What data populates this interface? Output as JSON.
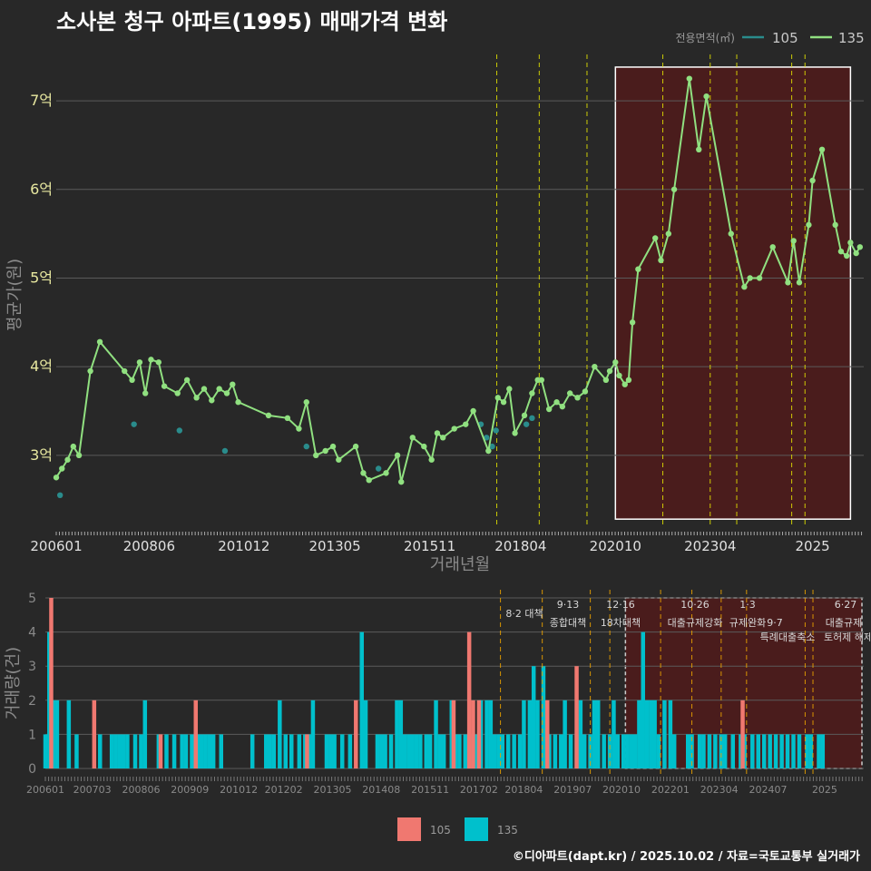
{
  "title": "소사본 청구 아파트(1995) 매매가격 변화",
  "footer": "©디아파트(dapt.kr) / 2025.10.02 / 자료=국토교통부 실거래가",
  "colors": {
    "bg": "#282828",
    "line135": "#90e080",
    "dot105": "#2a8c8c",
    "bar105": "#f07870",
    "bar135": "#00c0cc",
    "highlight": "#4a1c1c",
    "vline": "#e8e800"
  },
  "chart_data": {
    "price_chart": {
      "type": "line",
      "ylabel": "평균가(원)",
      "xlabel": "거래년월",
      "legend_title": "전용면적(㎡)",
      "legend": [
        "105",
        "135"
      ],
      "x_ticks": [
        "200601",
        "200806",
        "201012",
        "201305",
        "201511",
        "201804",
        "202010",
        "202304",
        "2025"
      ],
      "y_ticks": [
        "3억",
        "4억",
        "5억",
        "6억",
        "7억"
      ],
      "ylim": [
        2.2,
        7.4
      ],
      "highlight_range": [
        2020.75,
        2025.9
      ],
      "policy_lines": [
        2017.6,
        2018.7,
        2019.95,
        2021.9,
        2023.15,
        2023.8,
        2025.25,
        2025.45
      ],
      "series_135": [
        [
          2006.0,
          2.75
        ],
        [
          2006.15,
          2.85
        ],
        [
          2006.3,
          2.95
        ],
        [
          2006.45,
          3.1
        ],
        [
          2006.6,
          3.0
        ],
        [
          2006.9,
          3.95
        ],
        [
          2007.15,
          4.28
        ],
        [
          2007.8,
          3.95
        ],
        [
          2008.0,
          3.85
        ],
        [
          2008.2,
          4.05
        ],
        [
          2008.35,
          3.7
        ],
        [
          2008.5,
          4.08
        ],
        [
          2008.7,
          4.05
        ],
        [
          2008.85,
          3.78
        ],
        [
          2009.2,
          3.7
        ],
        [
          2009.45,
          3.85
        ],
        [
          2009.7,
          3.65
        ],
        [
          2009.9,
          3.75
        ],
        [
          2010.1,
          3.62
        ],
        [
          2010.3,
          3.75
        ],
        [
          2010.5,
          3.7
        ],
        [
          2010.65,
          3.8
        ],
        [
          2010.8,
          3.6
        ],
        [
          2011.6,
          3.45
        ],
        [
          2012.1,
          3.42
        ],
        [
          2012.4,
          3.3
        ],
        [
          2012.6,
          3.6
        ],
        [
          2012.85,
          3.0
        ],
        [
          2013.1,
          3.05
        ],
        [
          2013.3,
          3.1
        ],
        [
          2013.45,
          2.95
        ],
        [
          2013.9,
          3.1
        ],
        [
          2014.1,
          2.8
        ],
        [
          2014.25,
          2.72
        ],
        [
          2014.7,
          2.8
        ],
        [
          2015.0,
          3.0
        ],
        [
          2015.1,
          2.7
        ],
        [
          2015.4,
          3.2
        ],
        [
          2015.7,
          3.1
        ],
        [
          2015.9,
          2.95
        ],
        [
          2016.05,
          3.25
        ],
        [
          2016.2,
          3.2
        ],
        [
          2016.5,
          3.3
        ],
        [
          2016.8,
          3.35
        ],
        [
          2017.0,
          3.5
        ],
        [
          2017.4,
          3.05
        ],
        [
          2017.65,
          3.65
        ],
        [
          2017.8,
          3.6
        ],
        [
          2017.95,
          3.75
        ],
        [
          2018.1,
          3.25
        ],
        [
          2018.35,
          3.45
        ],
        [
          2018.55,
          3.7
        ],
        [
          2018.7,
          3.85
        ],
        [
          2018.8,
          3.85
        ],
        [
          2019.0,
          3.52
        ],
        [
          2019.2,
          3.6
        ],
        [
          2019.35,
          3.55
        ],
        [
          2019.55,
          3.7
        ],
        [
          2019.75,
          3.65
        ],
        [
          2019.95,
          3.72
        ],
        [
          2020.2,
          4.0
        ],
        [
          2020.5,
          3.85
        ],
        [
          2020.6,
          3.95
        ],
        [
          2020.75,
          4.05
        ],
        [
          2020.85,
          3.9
        ],
        [
          2021.0,
          3.8
        ],
        [
          2021.1,
          3.85
        ],
        [
          2021.2,
          4.5
        ],
        [
          2021.35,
          5.1
        ],
        [
          2021.8,
          5.45
        ],
        [
          2021.95,
          5.2
        ],
        [
          2022.15,
          5.5
        ],
        [
          2022.3,
          6.0
        ],
        [
          2022.7,
          7.25
        ],
        [
          2022.95,
          6.45
        ],
        [
          2023.15,
          7.05
        ],
        [
          2023.8,
          5.5
        ],
        [
          2024.15,
          4.9
        ],
        [
          2024.3,
          5.0
        ],
        [
          2024.55,
          5.0
        ],
        [
          2024.9,
          5.35
        ],
        [
          2025.3,
          4.95
        ],
        [
          2025.45,
          5.42
        ],
        [
          2025.6,
          4.95
        ],
        [
          2025.85,
          5.6
        ],
        [
          2025.95,
          6.1
        ],
        [
          2026.2,
          6.45
        ],
        [
          2026.55,
          5.6
        ],
        [
          2026.7,
          5.3
        ],
        [
          2026.85,
          5.25
        ],
        [
          2026.95,
          5.4
        ],
        [
          2027.1,
          5.28
        ],
        [
          2027.2,
          5.35
        ]
      ],
      "points_105": [
        [
          2006.1,
          2.55
        ],
        [
          2008.05,
          3.35
        ],
        [
          2009.25,
          3.28
        ],
        [
          2010.45,
          3.05
        ],
        [
          2012.6,
          3.1
        ],
        [
          2014.5,
          2.85
        ],
        [
          2017.2,
          3.35
        ],
        [
          2017.35,
          3.2
        ],
        [
          2017.5,
          3.1
        ],
        [
          2017.6,
          3.28
        ],
        [
          2018.4,
          3.35
        ],
        [
          2018.55,
          3.42
        ]
      ]
    },
    "volume_chart": {
      "type": "bar",
      "ylabel": "거래량(건)",
      "y_ticks": [
        "0",
        "1",
        "2",
        "3",
        "4",
        "5"
      ],
      "ylim": [
        0,
        5
      ],
      "x_ticks": [
        "200601",
        "200703",
        "200806",
        "200909",
        "201012",
        "201202",
        "201305",
        "201408",
        "201511",
        "201702",
        "201804",
        "201907",
        "202010",
        "202201",
        "202304",
        "202407",
        "2025"
      ],
      "legend": [
        "105",
        "135"
      ],
      "annotations": [
        {
          "date": "8·2 대책",
          "x": 2017.6,
          "row": 1
        },
        {
          "date": "9·13",
          "x": 2018.7,
          "row": 0
        },
        {
          "label": "종합대책",
          "x": 2018.7,
          "row": 1
        },
        {
          "date": "12·16",
          "x": 2019.95,
          "row": 0
        },
        {
          "label": "18차대책",
          "x": 2019.95,
          "row": 1
        },
        {
          "date": "10·26",
          "x": 2021.9,
          "row": 0
        },
        {
          "label": "대출규제강화",
          "x": 2021.9,
          "row": 1
        },
        {
          "date": "1·3",
          "x": 2023.15,
          "row": 0
        },
        {
          "label": "규제완화",
          "x": 2023.15,
          "row": 1
        },
        {
          "label": "9·7",
          "x": 2023.8,
          "row": 1
        },
        {
          "label": "특례대출축소",
          "x": 2023.8,
          "row": 2
        },
        {
          "label": "토허제 해제",
          "x": 2025.25,
          "row": 2
        },
        {
          "date": "6·27",
          "x": 2025.45,
          "row": 0
        },
        {
          "label": "대출규제",
          "x": 2025.45,
          "row": 1
        }
      ],
      "bars_135": [
        [
          2006.0,
          1
        ],
        [
          2006.1,
          4
        ],
        [
          2006.2,
          2
        ],
        [
          2006.3,
          2
        ],
        [
          2006.6,
          2
        ],
        [
          2006.8,
          1
        ],
        [
          2007.4,
          1
        ],
        [
          2007.7,
          1
        ],
        [
          2007.8,
          1
        ],
        [
          2007.9,
          1
        ],
        [
          2008.0,
          1
        ],
        [
          2008.1,
          1
        ],
        [
          2008.3,
          1
        ],
        [
          2008.45,
          1
        ],
        [
          2008.55,
          2
        ],
        [
          2008.9,
          1
        ],
        [
          2009.1,
          1
        ],
        [
          2009.3,
          1
        ],
        [
          2009.5,
          1
        ],
        [
          2009.6,
          1
        ],
        [
          2009.75,
          1
        ],
        [
          2009.9,
          1
        ],
        [
          2010.0,
          1
        ],
        [
          2010.1,
          1
        ],
        [
          2010.2,
          1
        ],
        [
          2010.3,
          1
        ],
        [
          2010.5,
          1
        ],
        [
          2011.3,
          1
        ],
        [
          2011.65,
          1
        ],
        [
          2011.75,
          1
        ],
        [
          2011.85,
          1
        ],
        [
          2012.0,
          2
        ],
        [
          2012.15,
          1
        ],
        [
          2012.3,
          1
        ],
        [
          2012.5,
          1
        ],
        [
          2012.65,
          1
        ],
        [
          2012.75,
          1
        ],
        [
          2012.85,
          2
        ],
        [
          2013.2,
          1
        ],
        [
          2013.3,
          1
        ],
        [
          2013.4,
          1
        ],
        [
          2013.6,
          1
        ],
        [
          2013.8,
          1
        ],
        [
          2014.1,
          4
        ],
        [
          2014.2,
          2
        ],
        [
          2014.5,
          1
        ],
        [
          2014.6,
          1
        ],
        [
          2014.7,
          1
        ],
        [
          2014.85,
          1
        ],
        [
          2015.0,
          2
        ],
        [
          2015.1,
          2
        ],
        [
          2015.2,
          1
        ],
        [
          2015.3,
          1
        ],
        [
          2015.4,
          1
        ],
        [
          2015.5,
          1
        ],
        [
          2015.6,
          1
        ],
        [
          2015.75,
          1
        ],
        [
          2015.85,
          1
        ],
        [
          2016.0,
          2
        ],
        [
          2016.1,
          1
        ],
        [
          2016.2,
          1
        ],
        [
          2016.4,
          2
        ],
        [
          2016.5,
          1
        ],
        [
          2016.6,
          1
        ],
        [
          2016.75,
          1
        ],
        [
          2016.9,
          1
        ],
        [
          2017.05,
          1
        ],
        [
          2017.15,
          2
        ],
        [
          2017.3,
          2
        ],
        [
          2017.4,
          2
        ],
        [
          2017.5,
          1
        ],
        [
          2017.6,
          1
        ],
        [
          2017.7,
          1
        ],
        [
          2017.85,
          1
        ],
        [
          2018.0,
          1
        ],
        [
          2018.15,
          1
        ],
        [
          2018.25,
          2
        ],
        [
          2018.4,
          2
        ],
        [
          2018.5,
          3
        ],
        [
          2018.6,
          2
        ],
        [
          2018.75,
          3
        ],
        [
          2018.9,
          1
        ],
        [
          2019.05,
          1
        ],
        [
          2019.2,
          1
        ],
        [
          2019.3,
          2
        ],
        [
          2019.45,
          1
        ],
        [
          2019.6,
          1
        ],
        [
          2019.7,
          2
        ],
        [
          2019.8,
          1
        ],
        [
          2019.95,
          1
        ],
        [
          2020.05,
          2
        ],
        [
          2020.15,
          2
        ],
        [
          2020.3,
          1
        ],
        [
          2020.45,
          1
        ],
        [
          2020.55,
          2
        ],
        [
          2020.65,
          1
        ],
        [
          2020.8,
          1
        ],
        [
          2020.9,
          1
        ],
        [
          2021.0,
          1
        ],
        [
          2021.1,
          1
        ],
        [
          2021.2,
          2
        ],
        [
          2021.3,
          4
        ],
        [
          2021.4,
          2
        ],
        [
          2021.5,
          2
        ],
        [
          2021.6,
          2
        ],
        [
          2021.7,
          1
        ],
        [
          2021.85,
          2
        ],
        [
          2022.0,
          2
        ],
        [
          2022.1,
          1
        ],
        [
          2022.45,
          1
        ],
        [
          2022.55,
          1
        ],
        [
          2022.75,
          1
        ],
        [
          2022.85,
          1
        ],
        [
          2023.0,
          1
        ],
        [
          2023.15,
          1
        ],
        [
          2023.3,
          1
        ],
        [
          2023.4,
          1
        ],
        [
          2023.6,
          1
        ],
        [
          2023.8,
          1
        ],
        [
          2023.9,
          1
        ],
        [
          2024.1,
          1
        ],
        [
          2024.25,
          1
        ],
        [
          2024.4,
          1
        ],
        [
          2024.55,
          1
        ],
        [
          2024.7,
          1
        ],
        [
          2024.85,
          1
        ],
        [
          2025.0,
          1
        ],
        [
          2025.15,
          1
        ],
        [
          2025.3,
          1
        ],
        [
          2025.5,
          1
        ],
        [
          2025.6,
          1
        ],
        [
          2025.8,
          1
        ],
        [
          2025.9,
          1
        ]
      ],
      "bars_105": [
        [
          2006.15,
          5
        ],
        [
          2007.25,
          2
        ],
        [
          2008.95,
          1
        ],
        [
          2009.85,
          2
        ],
        [
          2012.7,
          1
        ],
        [
          2013.95,
          2
        ],
        [
          2016.45,
          2
        ],
        [
          2016.85,
          4
        ],
        [
          2016.95,
          2
        ],
        [
          2017.1,
          2
        ],
        [
          2018.85,
          2
        ],
        [
          2019.6,
          3
        ],
        [
          2023.85,
          2
        ]
      ]
    }
  }
}
